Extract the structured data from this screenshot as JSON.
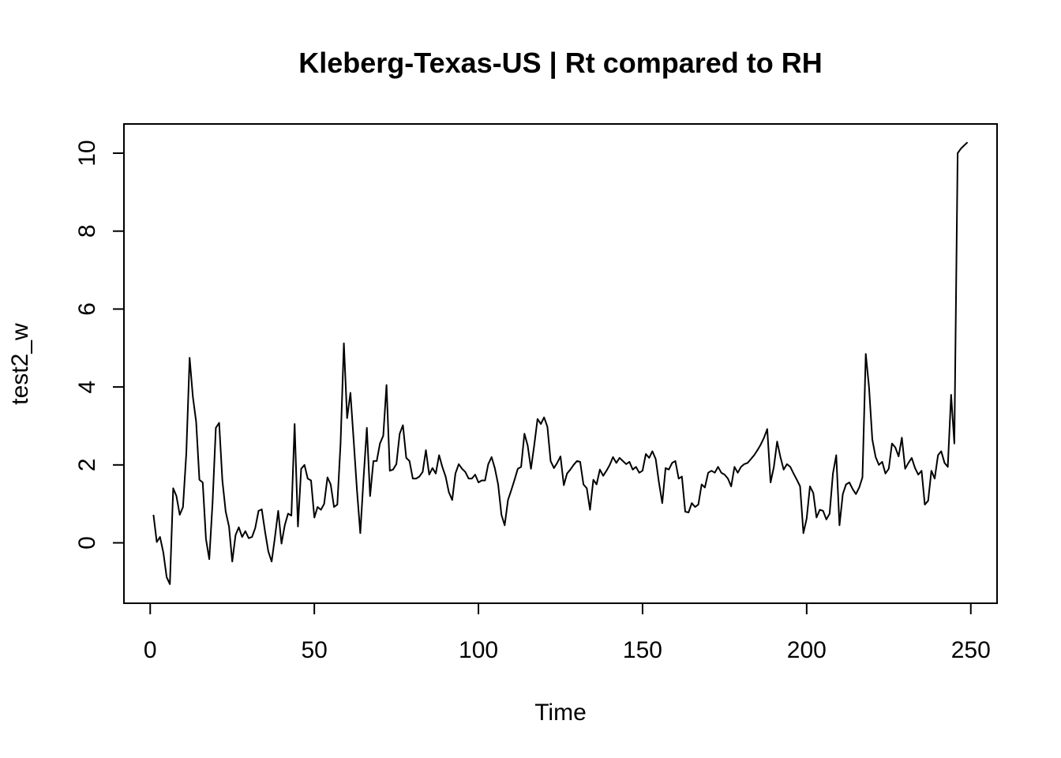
{
  "chart_data": {
    "type": "line",
    "title": "Kleberg-Texas-US | Rt compared to RH",
    "xlabel": "Time",
    "ylabel": "test2_w",
    "xlim": [
      -8,
      258
    ],
    "ylim": [
      -1.55,
      10.75
    ],
    "x_ticks": [
      0,
      50,
      100,
      150,
      200,
      250
    ],
    "y_ticks": [
      0,
      2,
      4,
      6,
      8,
      10
    ],
    "grid": false,
    "legend": "none",
    "line_color": "#000000",
    "series": [
      {
        "x_start": 1,
        "x_step": 1,
        "values": [
          0.72,
          0.02,
          0.15,
          -0.25,
          -0.88,
          -1.06,
          1.4,
          1.2,
          0.72,
          0.92,
          2.3,
          4.75,
          3.75,
          3.1,
          1.62,
          1.55,
          0.1,
          -0.42,
          1.05,
          2.95,
          3.08,
          1.6,
          0.8,
          0.42,
          -0.48,
          0.2,
          0.4,
          0.15,
          0.3,
          0.12,
          0.15,
          0.38,
          0.82,
          0.86,
          0.28,
          -0.22,
          -0.48,
          0.15,
          0.82,
          -0.02,
          0.45,
          0.75,
          0.7,
          3.05,
          0.42,
          1.9,
          2.0,
          1.65,
          1.6,
          0.65,
          0.92,
          0.85,
          1.0,
          1.68,
          1.5,
          0.92,
          0.98,
          2.55,
          5.12,
          3.2,
          3.85,
          2.6,
          1.35,
          0.25,
          1.65,
          2.95,
          1.2,
          2.1,
          2.1,
          2.55,
          2.75,
          4.05,
          1.85,
          1.88,
          2.02,
          2.8,
          3.02,
          2.18,
          2.1,
          1.65,
          1.65,
          1.7,
          1.82,
          2.38,
          1.75,
          1.92,
          1.78,
          2.25,
          1.95,
          1.7,
          1.3,
          1.1,
          1.78,
          2.02,
          1.9,
          1.82,
          1.65,
          1.65,
          1.75,
          1.55,
          1.6,
          1.6,
          2.02,
          2.2,
          1.92,
          1.5,
          0.72,
          0.45,
          1.1,
          1.35,
          1.62,
          1.9,
          1.95,
          2.8,
          2.5,
          1.9,
          2.5,
          3.18,
          3.05,
          3.22,
          2.98,
          2.1,
          1.92,
          2.05,
          2.22,
          1.48,
          1.78,
          1.88,
          2.0,
          2.1,
          2.08,
          1.5,
          1.4,
          0.85,
          1.62,
          1.5,
          1.88,
          1.72,
          1.85,
          2.0,
          2.2,
          2.05,
          2.18,
          2.1,
          2.02,
          2.08,
          1.88,
          1.95,
          1.8,
          1.85,
          2.28,
          2.18,
          2.35,
          2.15,
          1.55,
          1.02,
          1.92,
          1.88,
          2.05,
          2.1,
          1.65,
          1.7,
          0.8,
          0.78,
          1.02,
          0.92,
          0.98,
          1.5,
          1.42,
          1.8,
          1.85,
          1.8,
          1.95,
          1.8,
          1.75,
          1.65,
          1.45,
          1.95,
          1.8,
          1.95,
          2.02,
          2.05,
          2.15,
          2.25,
          2.38,
          2.52,
          2.7,
          2.92,
          1.55,
          1.95,
          2.6,
          2.2,
          1.88,
          2.02,
          1.95,
          1.78,
          1.62,
          1.45,
          0.25,
          0.62,
          1.45,
          1.28,
          0.65,
          0.85,
          0.82,
          0.6,
          0.75,
          1.78,
          2.25,
          0.45,
          1.25,
          1.5,
          1.55,
          1.38,
          1.25,
          1.42,
          1.68,
          4.85,
          4.0,
          2.65,
          2.2,
          2.0,
          2.08,
          1.78,
          1.9,
          2.55,
          2.45,
          2.22,
          2.7,
          1.9,
          2.05,
          2.18,
          1.92,
          1.75,
          1.85,
          0.98,
          1.08,
          1.85,
          1.65,
          2.25,
          2.35,
          2.05,
          1.95,
          3.8,
          2.55,
          10.0,
          10.12,
          10.2,
          10.28
        ]
      }
    ]
  }
}
